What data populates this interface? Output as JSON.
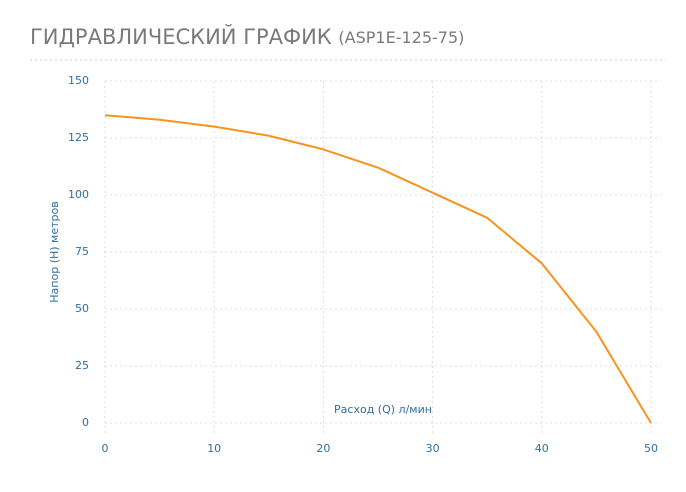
{
  "chart_data": {
    "type": "line",
    "title": "ГИДРАВЛИЧЕСКИЙ ГРАФИК",
    "subtitle": "(ASP1E-125-75)",
    "x_label": "Расход (Q) л/мин",
    "y_label": "Напор (Н) метров",
    "x": [
      0,
      5,
      10,
      15,
      20,
      25,
      30,
      35,
      40,
      45,
      50
    ],
    "series": [
      {
        "color": "#f7941d",
        "values": [
          135,
          133,
          130,
          126,
          120,
          112,
          101,
          90,
          70,
          40,
          0
        ]
      }
    ],
    "xlim": [
      0,
      50
    ],
    "xticks": [
      0,
      10,
      20,
      30,
      40,
      50
    ],
    "ylim": [
      0,
      150
    ],
    "yticks": [
      0,
      25,
      50,
      75,
      100,
      125,
      150
    ],
    "grid": true
  }
}
